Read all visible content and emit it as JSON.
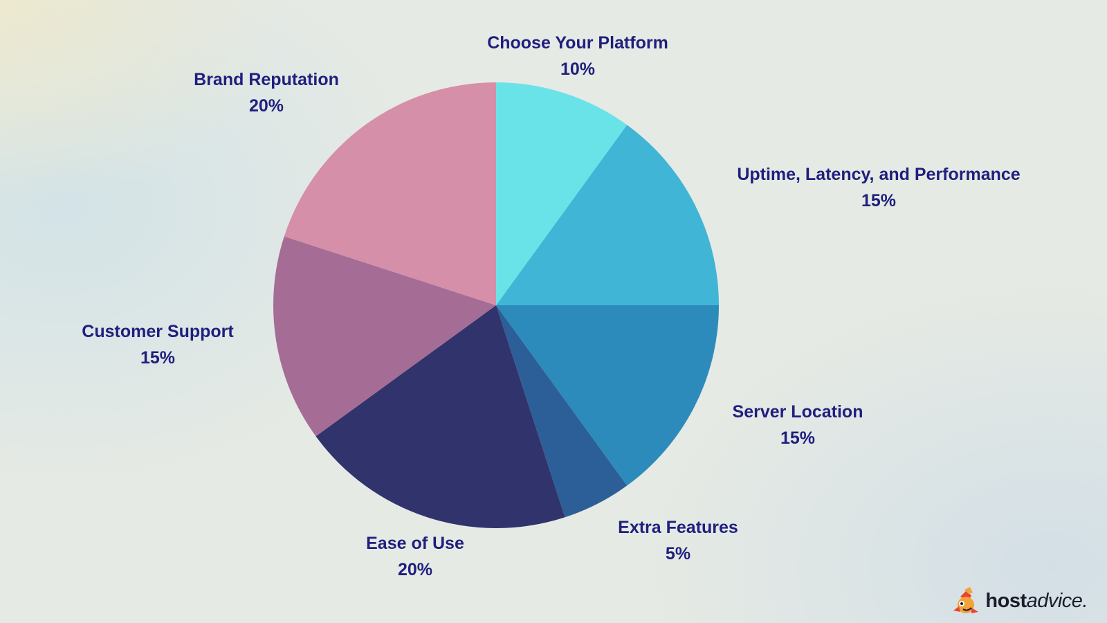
{
  "chart_data": {
    "type": "pie",
    "title": "",
    "slices": [
      {
        "label": "Choose Your Platform",
        "value": 10,
        "display": "10%",
        "color": "#6ae3e8"
      },
      {
        "label": "Uptime, Latency, and Performance",
        "value": 15,
        "display": "15%",
        "color": "#41b5d6"
      },
      {
        "label": "Server Location",
        "value": 15,
        "display": "15%",
        "color": "#2c8bba"
      },
      {
        "label": "Extra Features",
        "value": 5,
        "display": "5%",
        "color": "#2c5f97"
      },
      {
        "label": "Ease of Use",
        "value": 20,
        "display": "20%",
        "color": "#30336c"
      },
      {
        "label": "Customer Support",
        "value": 15,
        "display": "15%",
        "color": "#a56d95"
      },
      {
        "label": "Brand Reputation",
        "value": 20,
        "display": "20%",
        "color": "#d68fa9"
      }
    ],
    "start": "12 o'clock",
    "direction": "clockwise",
    "label_color": "#1f1f7e"
  },
  "brand": {
    "logo_bold": "host",
    "logo_rest": "advice.",
    "logo_icon": "host-advice-mascot-icon"
  }
}
